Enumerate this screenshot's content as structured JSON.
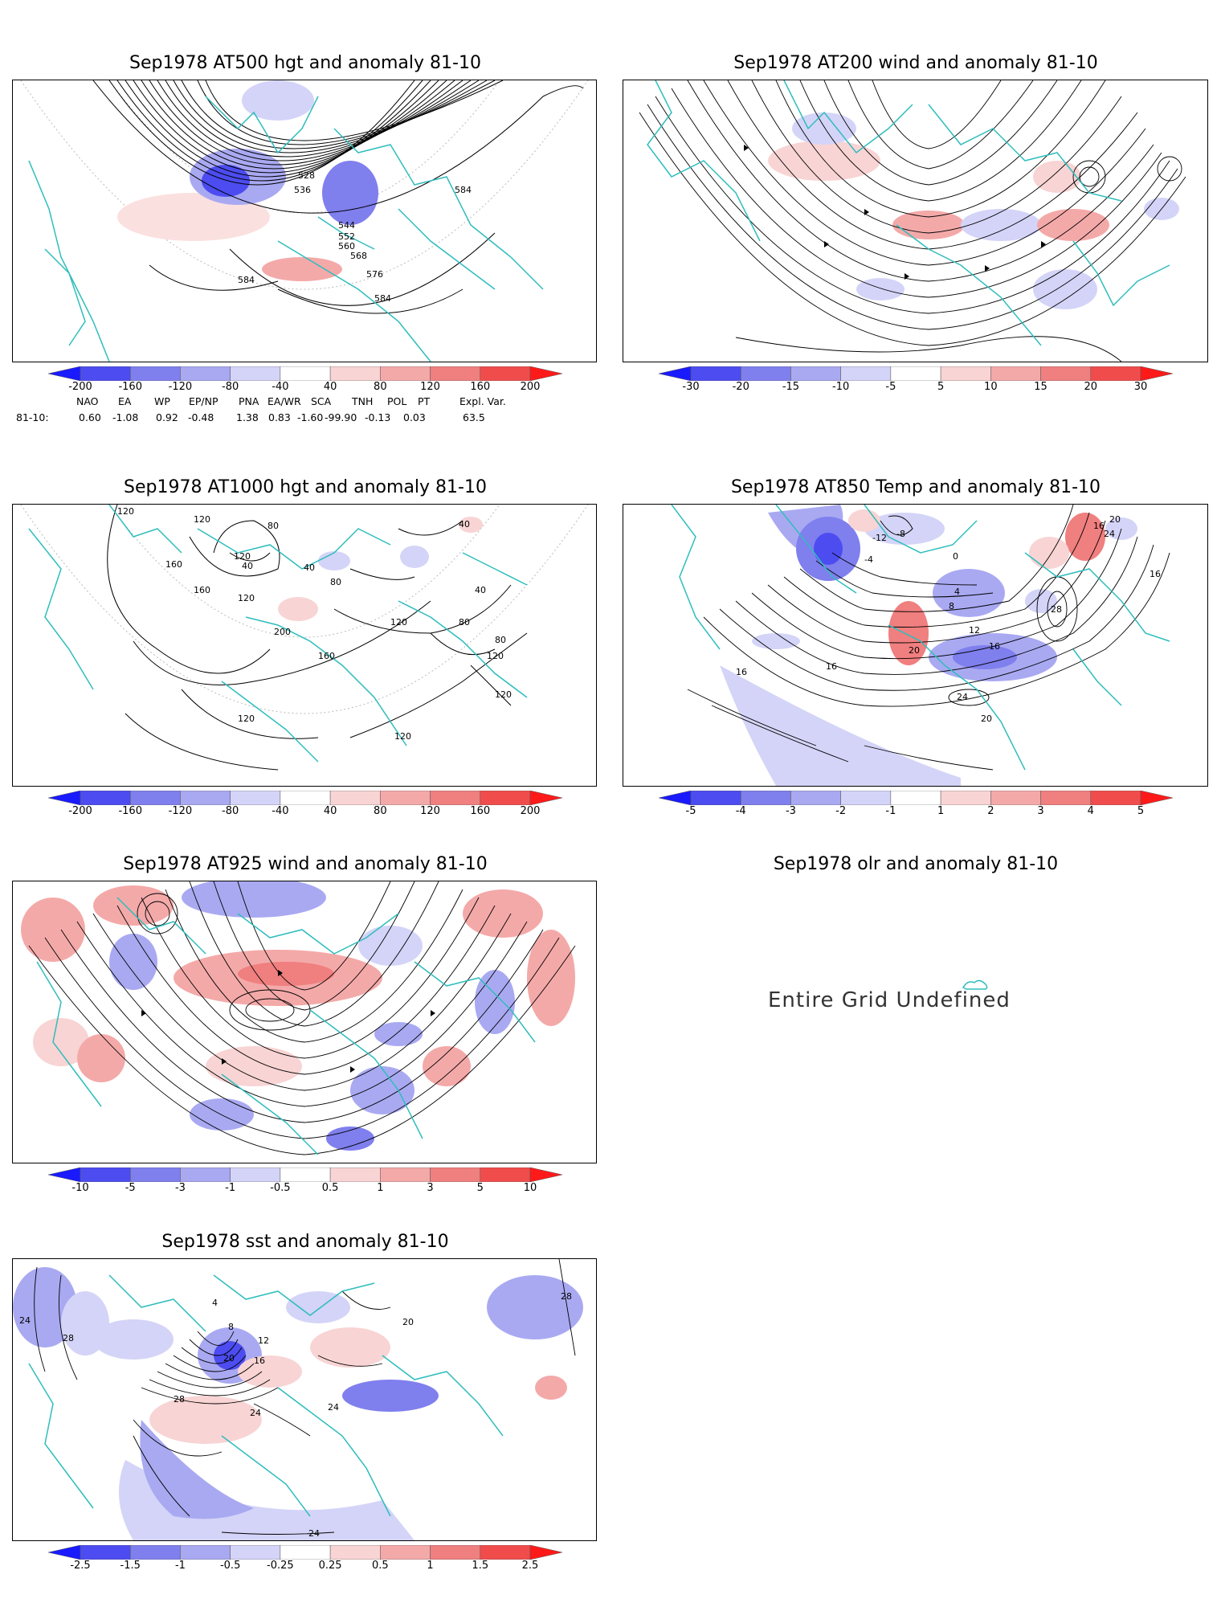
{
  "panels": [
    {
      "id": "p500",
      "title": "Sep1978 AT500 hgt and anomaly 81-10",
      "contour_labels": [
        "528",
        "536",
        "544",
        "552",
        "560",
        "568",
        "576",
        "584",
        "584",
        "584"
      ],
      "colorbar": [
        "-200",
        "-160",
        "-120",
        "-80",
        "-40",
        "40",
        "80",
        "120",
        "160",
        "200"
      ]
    },
    {
      "id": "p200",
      "title": "Sep1978 AT200 wind and anomaly 81-10",
      "colorbar": [
        "-30",
        "-20",
        "-15",
        "-10",
        "-5",
        "5",
        "10",
        "15",
        "20",
        "30"
      ]
    },
    {
      "id": "p1000",
      "title": "Sep1978 AT1000 hgt and anomaly 81-10",
      "contour_labels": [
        "120",
        "120",
        "80",
        "120",
        "40",
        "40",
        "80",
        "160",
        "40",
        "160",
        "120",
        "200",
        "160",
        "120",
        "80",
        "40",
        "80",
        "120",
        "120",
        "120",
        "120"
      ],
      "colorbar": [
        "-200",
        "-160",
        "-120",
        "-80",
        "-40",
        "40",
        "80",
        "120",
        "160",
        "200"
      ]
    },
    {
      "id": "p850",
      "title": "Sep1978 AT850 Temp and anomaly 81-10",
      "contour_labels": [
        "-12",
        "-8",
        "-4",
        "0",
        "4",
        "8",
        "12",
        "16",
        "20",
        "24",
        "28",
        "16",
        "16",
        "20",
        "24",
        "20",
        "16",
        "16"
      ],
      "colorbar": [
        "-5",
        "-4",
        "-3",
        "-2",
        "-1",
        "1",
        "2",
        "3",
        "4",
        "5"
      ]
    },
    {
      "id": "p925",
      "title": "Sep1978 AT925 wind and anomaly 81-10",
      "colorbar": [
        "-10",
        "-5",
        "-3",
        "-1",
        "-0.5",
        "0.5",
        "1",
        "3",
        "5",
        "10"
      ]
    },
    {
      "id": "polr",
      "title": "Sep1978 olr and anomaly 81-10",
      "message": "Entire Grid Undefined"
    },
    {
      "id": "psst",
      "title": "Sep1978 sst and anomaly 81-10",
      "contour_labels": [
        "24",
        "28",
        "4",
        "8",
        "12",
        "16",
        "20",
        "24",
        "28",
        "20",
        "24",
        "28",
        "24"
      ],
      "colorbar": [
        "-2.5",
        "-1.5",
        "-1",
        "-0.5",
        "-0.25",
        "0.25",
        "0.5",
        "1",
        "1.5",
        "2.5"
      ]
    }
  ],
  "teleconnection": {
    "headers": [
      "NAO",
      "EA",
      "WP",
      "EP/NP",
      "PNA",
      "EA/WR",
      "SCA",
      "TNH",
      "POL",
      "PT",
      "Expl. Var."
    ],
    "row_label": "81-10:",
    "values": [
      "0.60",
      "-1.08",
      "0.92",
      "-0.48",
      "1.38",
      "0.83",
      "-1.60",
      "-99.90",
      "-0.13",
      "0.03",
      "63.5"
    ]
  },
  "colors": {
    "coast": "#2fbdbd",
    "blues": [
      "#1a1aff",
      "#4c4cf0",
      "#7f7fee",
      "#a9a9f2",
      "#d4d4f8"
    ],
    "reds": [
      "#f8d4d4",
      "#f4a9a9",
      "#f07f7f",
      "#f04c4c",
      "#ff1a1a"
    ],
    "contour": "#000000"
  }
}
